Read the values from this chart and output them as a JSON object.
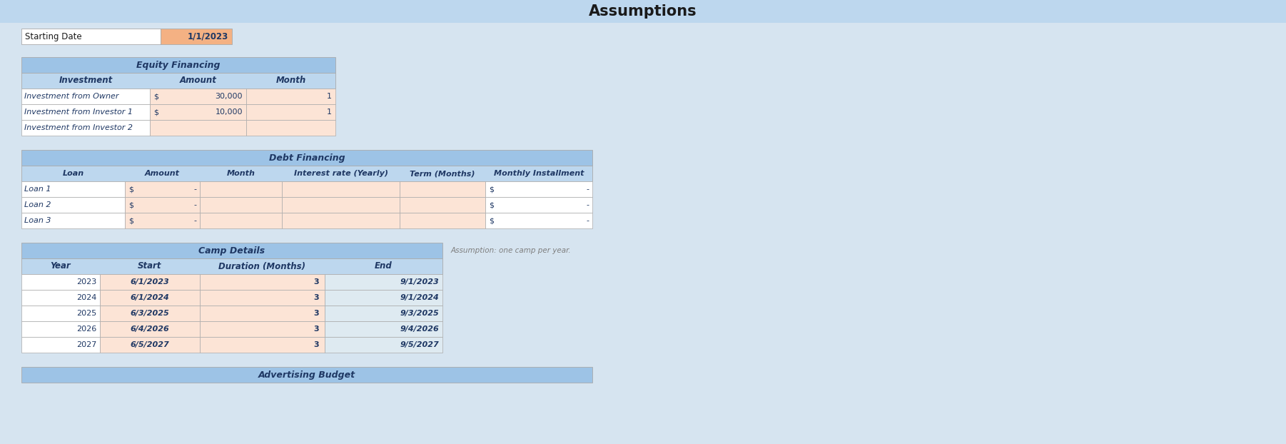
{
  "title": "Assumptions",
  "starting_date_label": "Starting Date",
  "starting_date_value": "1/1/2023",
  "equity_header": "Equity Financing",
  "equity_col_headers": [
    "Investment",
    "Amount",
    "Month"
  ],
  "equity_rows": [
    [
      "Investment from Owner",
      "$",
      "30,000",
      "1"
    ],
    [
      "Investment from Investor 1",
      "$",
      "10,000",
      "1"
    ],
    [
      "Investment from Investor 2",
      "",
      "",
      ""
    ]
  ],
  "debt_header": "Debt Financing",
  "debt_col_headers": [
    "Loan",
    "Amount",
    "Month",
    "Interest rate (Yearly)",
    "Term (Months)",
    "Monthly Installment"
  ],
  "debt_rows": [
    [
      "Loan 1",
      "$",
      "-",
      "",
      "",
      "$",
      "-"
    ],
    [
      "Loan 2",
      "$",
      "-",
      "",
      "",
      "$",
      "-"
    ],
    [
      "Loan 3",
      "$",
      "-",
      "",
      "",
      "$",
      "-"
    ]
  ],
  "camp_header": "Camp Details",
  "camp_note": "Assumption: one camp per year.",
  "camp_col_headers": [
    "Year",
    "Start",
    "Duration (Months)",
    "End"
  ],
  "camp_rows": [
    [
      "2023",
      "6/1/2023",
      "3",
      "9/1/2023"
    ],
    [
      "2024",
      "6/1/2024",
      "3",
      "9/1/2024"
    ],
    [
      "2025",
      "6/3/2025",
      "3",
      "9/3/2025"
    ],
    [
      "2026",
      "6/4/2026",
      "3",
      "9/4/2026"
    ],
    [
      "2027",
      "6/5/2027",
      "3",
      "9/5/2027"
    ]
  ],
  "adv_header": "Advertising Budget",
  "color_header_bg": "#9DC3E6",
  "color_col_header_bg": "#BDD7EE",
  "color_orange": "#F4B183",
  "color_light_orange": "#FCE4D6",
  "color_white": "#FFFFFF",
  "color_light_blue": "#DEEAF1",
  "color_page_bg": "#D6E4F0",
  "color_text_dark": "#1F3864",
  "color_gray_text": "#7F7F7F",
  "color_border": "#AAAAAA",
  "title_bar_color": "#BDD7EE"
}
